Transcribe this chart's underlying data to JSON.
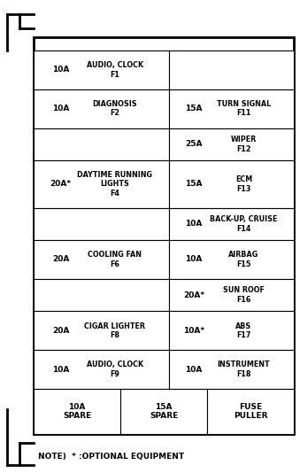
{
  "bg_color": "#ffffff",
  "note": "NOTE)  * :OPTIONAL EQUIPMENT",
  "rows": [
    {
      "left_amp": "10A",
      "left_label": "AUDIO, CLOCK\nF1",
      "right_amp": "",
      "right_label": "",
      "span": "left"
    },
    {
      "left_amp": "10A",
      "left_label": "DIAGNOSIS\nF2",
      "right_amp": "15A",
      "right_label": "TURN SIGNAL\nF11",
      "span": "both"
    },
    {
      "left_amp": "",
      "left_label": "",
      "right_amp": "25A",
      "right_label": "WIPER\nF12",
      "span": "right"
    },
    {
      "left_amp": "20A*",
      "left_label": "DAYTIME RUNNING\nLIGHTS\nF4",
      "right_amp": "15A",
      "right_label": "ECM\nF13",
      "span": "both"
    },
    {
      "left_amp": "",
      "left_label": "",
      "right_amp": "10A",
      "right_label": "BACK-UP, CRUISE\nF14",
      "span": "right"
    },
    {
      "left_amp": "20A",
      "left_label": "COOLING FAN\nF6",
      "right_amp": "10A",
      "right_label": "AIRBAG\nF15",
      "span": "both"
    },
    {
      "left_amp": "",
      "left_label": "",
      "right_amp": "20A*",
      "right_label": "SUN ROOF\nF16",
      "span": "right"
    },
    {
      "left_amp": "20A",
      "left_label": "CIGAR LIGHTER\nF8",
      "right_amp": "10A*",
      "right_label": "ABS\nF17",
      "span": "both"
    },
    {
      "left_amp": "10A",
      "left_label": "AUDIO, CLOCK\nF9",
      "right_amp": "10A",
      "right_label": "INSTRUMENT\nF18",
      "span": "both"
    }
  ],
  "bottom_cells": [
    {
      "label": "10A\nSPARE"
    },
    {
      "label": "15A\nSPARE"
    },
    {
      "label": "FUSE\nPULLER"
    }
  ],
  "outer_lw": 2.0,
  "inner_lw": 0.8,
  "amp_fontsize": 6.5,
  "label_fontsize": 5.8,
  "note_fontsize": 6.5
}
